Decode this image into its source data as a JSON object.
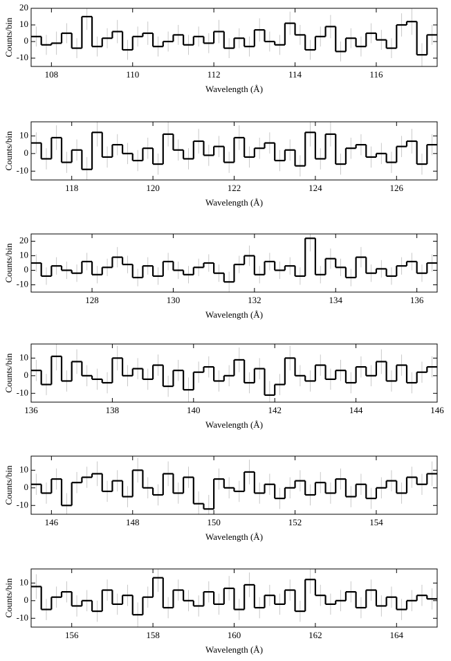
{
  "chart_data": [
    {
      "type": "histogram",
      "xlabel": "Wavelength (Å)",
      "ylabel": "Counts/bin",
      "bins": [
        107.5,
        107.75,
        108,
        108.25,
        108.5,
        108.75,
        109,
        109.25,
        109.5,
        109.75,
        110,
        110.25,
        110.5,
        110.75,
        111,
        111.25,
        111.5,
        111.75,
        112,
        112.25,
        112.5,
        112.75,
        113,
        113.25,
        113.5,
        113.75,
        114,
        114.25,
        114.5,
        114.75,
        115,
        115.25,
        115.5,
        115.75,
        116,
        116.25,
        116.5,
        116.75,
        117,
        117.25,
        117.5
      ],
      "values": [
        3,
        -2,
        -1,
        5,
        -4,
        15,
        -3,
        2,
        6,
        -5,
        3,
        5,
        -3,
        0,
        4,
        -2,
        3,
        -1,
        6,
        -4,
        2,
        -3,
        7,
        0,
        -2,
        11,
        4,
        -5,
        3,
        9,
        -6,
        2,
        -3,
        5,
        1,
        -4,
        10,
        12,
        -8,
        4
      ],
      "errors": [
        6,
        6,
        7,
        6,
        6,
        8,
        6,
        6,
        7,
        6,
        6,
        7,
        6,
        6,
        6,
        6,
        6,
        6,
        7,
        6,
        6,
        6,
        7,
        6,
        6,
        7,
        6,
        6,
        6,
        7,
        6,
        6,
        6,
        6,
        6,
        6,
        7,
        8,
        7,
        6
      ],
      "color": "#000000",
      "error_color": "#bbbbbb",
      "xlim": [
        107.5,
        117.5
      ],
      "xticks": [
        108,
        110,
        112,
        114,
        116
      ],
      "ylim": [
        -15,
        20
      ],
      "yticks": [
        -10,
        0,
        10,
        20
      ]
    },
    {
      "type": "histogram",
      "xlabel": "Wavelength (Å)",
      "ylabel": "Counts/bin",
      "bins": [
        117,
        117.25,
        117.5,
        117.75,
        118,
        118.25,
        118.5,
        118.75,
        119,
        119.25,
        119.5,
        119.75,
        120,
        120.25,
        120.5,
        120.75,
        121,
        121.25,
        121.5,
        121.75,
        122,
        122.25,
        122.5,
        122.75,
        123,
        123.25,
        123.5,
        123.75,
        124,
        124.25,
        124.5,
        124.75,
        125,
        125.25,
        125.5,
        125.75,
        126,
        126.25,
        126.5,
        126.75,
        127
      ],
      "values": [
        6,
        -3,
        9,
        -5,
        2,
        -9,
        12,
        -2,
        5,
        0,
        -4,
        3,
        -6,
        11,
        2,
        -3,
        7,
        -1,
        4,
        -5,
        9,
        -2,
        3,
        6,
        -4,
        2,
        -7,
        12,
        -3,
        11,
        -6,
        3,
        5,
        -2,
        0,
        -5,
        4,
        7,
        -6,
        5
      ],
      "errors": [
        6,
        6,
        7,
        6,
        6,
        7,
        8,
        6,
        6,
        6,
        6,
        6,
        6,
        7,
        6,
        6,
        7,
        6,
        6,
        6,
        7,
        6,
        6,
        6,
        6,
        6,
        6,
        8,
        6,
        7,
        6,
        6,
        6,
        6,
        6,
        6,
        6,
        7,
        6,
        6
      ],
      "color": "#000000",
      "error_color": "#bbbbbb",
      "xlim": [
        117,
        127
      ],
      "xticks": [
        118,
        120,
        122,
        124,
        126
      ],
      "ylim": [
        -15,
        18
      ],
      "yticks": [
        -10,
        0,
        10
      ]
    },
    {
      "type": "histogram",
      "xlabel": "Wavelength (Å)",
      "ylabel": "Counts/bin",
      "bins": [
        126.5,
        126.75,
        127,
        127.25,
        127.5,
        127.75,
        128,
        128.25,
        128.5,
        128.75,
        129,
        129.25,
        129.5,
        129.75,
        130,
        130.25,
        130.5,
        130.75,
        131,
        131.25,
        131.5,
        131.75,
        132,
        132.25,
        132.5,
        132.75,
        133,
        133.25,
        133.5,
        133.75,
        134,
        134.25,
        134.5,
        134.75,
        135,
        135.25,
        135.5,
        135.75,
        136,
        136.25,
        136.5
      ],
      "values": [
        5,
        -4,
        3,
        0,
        -2,
        6,
        -3,
        2,
        9,
        4,
        -5,
        3,
        -4,
        6,
        0,
        -3,
        2,
        5,
        -2,
        -8,
        4,
        10,
        -3,
        6,
        0,
        3,
        -4,
        22,
        -3,
        8,
        2,
        -5,
        9,
        -2,
        1,
        -4,
        3,
        6,
        -2,
        5
      ],
      "errors": [
        6,
        6,
        6,
        6,
        6,
        6,
        6,
        6,
        7,
        6,
        6,
        6,
        6,
        6,
        6,
        6,
        6,
        6,
        6,
        7,
        6,
        7,
        6,
        6,
        6,
        6,
        6,
        9,
        6,
        7,
        6,
        6,
        7,
        6,
        6,
        6,
        6,
        6,
        6,
        6
      ],
      "color": "#000000",
      "error_color": "#bbbbbb",
      "xlim": [
        126.5,
        136.5
      ],
      "xticks": [
        128,
        130,
        132,
        134,
        136
      ],
      "ylim": [
        -15,
        25
      ],
      "yticks": [
        -10,
        0,
        10,
        20
      ]
    },
    {
      "type": "histogram",
      "xlabel": "Wavelength (Å)",
      "ylabel": "Counts/bin",
      "bins": [
        136,
        136.25,
        136.5,
        136.75,
        137,
        137.25,
        137.5,
        137.75,
        138,
        138.25,
        138.5,
        138.75,
        139,
        139.25,
        139.5,
        139.75,
        140,
        140.25,
        140.5,
        140.75,
        141,
        141.25,
        141.5,
        141.75,
        142,
        142.25,
        142.5,
        142.75,
        143,
        143.25,
        143.5,
        143.75,
        144,
        144.25,
        144.5,
        144.75,
        145,
        145.25,
        145.5,
        145.75,
        146
      ],
      "values": [
        3,
        -5,
        11,
        -3,
        8,
        0,
        -2,
        -4,
        10,
        0,
        4,
        -2,
        6,
        -6,
        3,
        -8,
        2,
        5,
        -3,
        0,
        9,
        -4,
        4,
        -11,
        -5,
        10,
        0,
        -3,
        6,
        -2,
        3,
        -4,
        5,
        0,
        8,
        -3,
        6,
        -4,
        2,
        5
      ],
      "errors": [
        6,
        6,
        8,
        6,
        7,
        6,
        6,
        6,
        7,
        6,
        6,
        6,
        6,
        6,
        6,
        7,
        6,
        6,
        6,
        6,
        7,
        6,
        6,
        8,
        6,
        7,
        6,
        6,
        6,
        6,
        6,
        6,
        6,
        6,
        7,
        6,
        6,
        6,
        6,
        6
      ],
      "color": "#000000",
      "error_color": "#bbbbbb",
      "xlim": [
        136,
        146
      ],
      "xticks": [
        136,
        138,
        140,
        142,
        144,
        146
      ],
      "ylim": [
        -15,
        18
      ],
      "yticks": [
        -10,
        0,
        10
      ]
    },
    {
      "type": "histogram",
      "xlabel": "Wavelength (Å)",
      "ylabel": "Counts/bin",
      "bins": [
        145.5,
        145.75,
        146,
        146.25,
        146.5,
        146.75,
        147,
        147.25,
        147.5,
        147.75,
        148,
        148.25,
        148.5,
        148.75,
        149,
        149.25,
        149.5,
        149.75,
        150,
        150.25,
        150.5,
        150.75,
        151,
        151.25,
        151.5,
        151.75,
        152,
        152.25,
        152.5,
        152.75,
        153,
        153.25,
        153.5,
        153.75,
        154,
        154.25,
        154.5,
        154.75,
        155,
        155.25,
        155.5
      ],
      "values": [
        2,
        -3,
        5,
        -10,
        3,
        6,
        8,
        -2,
        4,
        -5,
        10,
        0,
        -4,
        8,
        -3,
        6,
        -9,
        -12,
        5,
        0,
        -2,
        9,
        -3,
        2,
        -6,
        0,
        4,
        -4,
        3,
        -3,
        5,
        -5,
        2,
        -6,
        0,
        4,
        -3,
        6,
        2,
        8
      ],
      "errors": [
        6,
        6,
        6,
        7,
        6,
        6,
        7,
        6,
        6,
        6,
        7,
        6,
        6,
        7,
        6,
        6,
        7,
        8,
        6,
        6,
        6,
        7,
        6,
        6,
        6,
        6,
        6,
        6,
        6,
        6,
        6,
        6,
        6,
        6,
        6,
        6,
        6,
        6,
        6,
        7
      ],
      "color": "#000000",
      "error_color": "#bbbbbb",
      "xlim": [
        145.5,
        155.5
      ],
      "xticks": [
        146,
        148,
        150,
        152,
        154
      ],
      "ylim": [
        -15,
        18
      ],
      "yticks": [
        -10,
        0,
        10
      ]
    },
    {
      "type": "histogram",
      "xlabel": "Wavelength (Å)",
      "ylabel": "Counts/bin",
      "bins": [
        155,
        155.25,
        155.5,
        155.75,
        156,
        156.25,
        156.5,
        156.75,
        157,
        157.25,
        157.5,
        157.75,
        158,
        158.25,
        158.5,
        158.75,
        159,
        159.25,
        159.5,
        159.75,
        160,
        160.25,
        160.5,
        160.75,
        161,
        161.25,
        161.5,
        161.75,
        162,
        162.25,
        162.5,
        162.75,
        163,
        163.25,
        163.5,
        163.75,
        164,
        164.25,
        164.5,
        164.75,
        165
      ],
      "values": [
        8,
        -5,
        2,
        5,
        -3,
        0,
        -6,
        6,
        -2,
        3,
        -8,
        2,
        13,
        -4,
        6,
        0,
        -3,
        5,
        -2,
        7,
        -5,
        9,
        -4,
        3,
        -2,
        6,
        -6,
        12,
        3,
        -2,
        0,
        5,
        -4,
        6,
        -3,
        2,
        -5,
        0,
        3,
        1
      ],
      "errors": [
        7,
        6,
        6,
        6,
        6,
        6,
        6,
        6,
        6,
        6,
        7,
        6,
        8,
        6,
        6,
        6,
        6,
        6,
        6,
        7,
        6,
        7,
        6,
        6,
        6,
        6,
        6,
        8,
        6,
        6,
        6,
        6,
        6,
        6,
        6,
        6,
        6,
        6,
        6,
        6
      ],
      "color": "#000000",
      "error_color": "#bbbbbb",
      "xlim": [
        155,
        165
      ],
      "xticks": [
        156,
        158,
        160,
        162,
        164
      ],
      "ylim": [
        -15,
        18
      ],
      "yticks": [
        -10,
        0,
        10
      ]
    }
  ]
}
